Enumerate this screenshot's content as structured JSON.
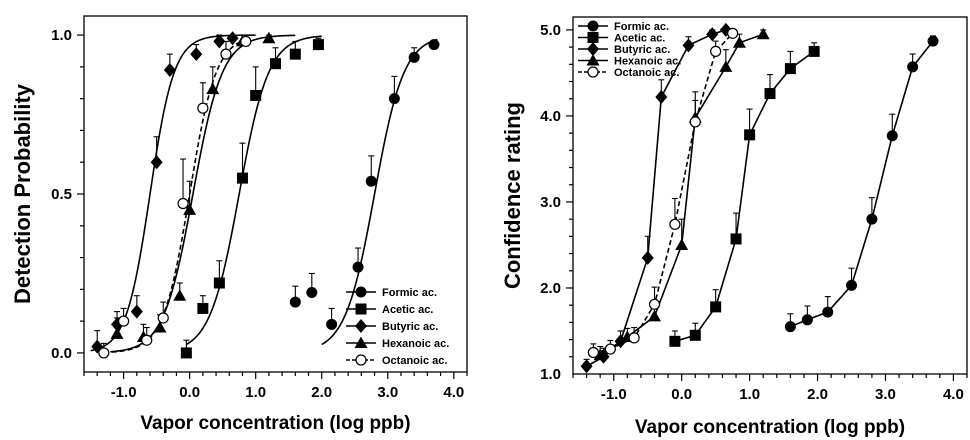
{
  "chart_data": [
    {
      "type": "scatter",
      "xlabel": "Vapor concentration (log ppb)",
      "ylabel": "Detection Probability",
      "xlim": [
        -1.6,
        4.2
      ],
      "ylim": [
        -0.06,
        1.06
      ],
      "xticks": [
        -1.0,
        0.0,
        1.0,
        2.0,
        3.0,
        4.0
      ],
      "xtick_labels": [
        "-1.0",
        "0.0",
        "1.0",
        "2.0",
        "3.0",
        "4.0"
      ],
      "yticks": [
        0.0,
        0.5,
        1.0
      ],
      "ytick_labels": [
        "0.0",
        "0.5",
        "1.0"
      ],
      "legend_position": "bottom-right",
      "series": [
        {
          "name": "Formic ac.",
          "marker": "circle-filled",
          "line": "solid",
          "x": [
            1.6,
            1.85,
            2.15,
            2.55,
            2.75,
            3.1,
            3.4,
            3.7
          ],
          "y": [
            0.16,
            0.19,
            0.09,
            0.27,
            0.54,
            0.8,
            0.93,
            0.97
          ],
          "err": [
            0.05,
            0.06,
            0.05,
            0.06,
            0.08,
            0.07,
            0.03,
            0.01
          ],
          "fit": {
            "x0": 2.8,
            "k": 4.5,
            "from": 2.0,
            "to": 3.75
          }
        },
        {
          "name": "Acetic ac.",
          "marker": "square-filled",
          "line": "solid",
          "x": [
            -0.05,
            0.2,
            0.45,
            0.8,
            1.0,
            1.3,
            1.6,
            1.95
          ],
          "y": [
            0.0,
            0.14,
            0.22,
            0.55,
            0.81,
            0.91,
            0.94,
            0.97
          ],
          "err": [
            0.04,
            0.04,
            0.07,
            0.11,
            0.09,
            0.05,
            0.04,
            0.02
          ],
          "fit": {
            "x0": 0.75,
            "k": 4.5,
            "from": -0.05,
            "to": 2.0
          }
        },
        {
          "name": "Butyric ac.",
          "marker": "diamond-filled",
          "line": "solid",
          "x": [
            -1.4,
            -1.1,
            -0.8,
            -0.5,
            -0.3,
            0.1,
            0.45,
            0.65
          ],
          "y": [
            0.02,
            0.09,
            0.13,
            0.6,
            0.89,
            0.94,
            0.98,
            0.99
          ],
          "err": [
            0.05,
            0.04,
            0.05,
            0.08,
            0.05,
            0.03,
            0.02,
            0.01
          ],
          "fit": {
            "x0": -0.6,
            "k": 5.5,
            "from": -1.5,
            "to": 1.0
          }
        },
        {
          "name": "Hexanoic ac.",
          "marker": "triangle-filled",
          "line": "solid",
          "x": [
            -1.1,
            -0.7,
            -0.45,
            -0.15,
            0.0,
            0.35,
            0.8,
            1.2
          ],
          "y": [
            0.06,
            0.05,
            0.08,
            0.18,
            0.45,
            0.83,
            0.98,
            0.99
          ],
          "err": [
            0.05,
            0.04,
            0.04,
            0.04,
            0.09,
            0.07,
            0.02,
            0.01
          ],
          "fit": {
            "x0": 0.05,
            "k": 4.5,
            "from": -1.2,
            "to": 1.6
          }
        },
        {
          "name": "Octanoic ac.",
          "marker": "circle-open",
          "line": "dashed",
          "x": [
            -1.3,
            -1.0,
            -0.65,
            -0.4,
            -0.1,
            0.2,
            0.55,
            0.85
          ],
          "y": [
            0.0,
            0.1,
            0.04,
            0.11,
            0.47,
            0.77,
            0.94,
            0.98
          ],
          "err": [
            0.03,
            0.04,
            0.04,
            0.05,
            0.14,
            0.08,
            0.04,
            0.02
          ],
          "fit": {
            "x0": 0.0,
            "k": 5.0,
            "from": -1.3,
            "to": 0.9
          }
        }
      ]
    },
    {
      "type": "line",
      "xlabel": "Vapor concentration (log ppb)",
      "ylabel": "Confidence rating",
      "xlim": [
        -1.6,
        4.2
      ],
      "ylim": [
        1.0,
        5.15
      ],
      "xticks": [
        -1.0,
        0.0,
        1.0,
        2.0,
        3.0,
        4.0
      ],
      "xtick_labels": [
        "-1.0",
        "0.0",
        "1.0",
        "2.0",
        "3.0",
        "4.0"
      ],
      "yticks": [
        1.0,
        2.0,
        3.0,
        4.0,
        5.0
      ],
      "ytick_labels": [
        "1.0",
        "2.0",
        "3.0",
        "4.0",
        "5.0"
      ],
      "legend_position": "top-left",
      "series": [
        {
          "name": "Formic ac.",
          "marker": "circle-filled",
          "line": "solid",
          "x": [
            1.6,
            1.85,
            2.15,
            2.5,
            2.8,
            3.1,
            3.4,
            3.7
          ],
          "y": [
            1.55,
            1.63,
            1.72,
            2.03,
            2.8,
            3.77,
            4.57,
            4.87
          ],
          "err": [
            0.15,
            0.16,
            0.18,
            0.2,
            0.25,
            0.25,
            0.15,
            0.06
          ]
        },
        {
          "name": "Acetic ac.",
          "marker": "square-filled",
          "line": "solid",
          "x": [
            -0.1,
            0.2,
            0.5,
            0.8,
            1.0,
            1.3,
            1.6,
            1.95
          ],
          "y": [
            1.38,
            1.45,
            1.78,
            2.57,
            3.78,
            4.26,
            4.55,
            4.75
          ],
          "err": [
            0.12,
            0.14,
            0.2,
            0.3,
            0.3,
            0.22,
            0.2,
            0.1
          ]
        },
        {
          "name": "Butyric ac.",
          "marker": "diamond-filled",
          "line": "solid",
          "x": [
            -1.4,
            -1.15,
            -0.9,
            -0.5,
            -0.3,
            0.1,
            0.45,
            0.65
          ],
          "y": [
            1.09,
            1.2,
            1.38,
            2.35,
            4.22,
            4.82,
            4.95,
            5.0
          ],
          "err": [
            0.08,
            0.1,
            0.12,
            0.25,
            0.2,
            0.1,
            0.05,
            0.03
          ]
        },
        {
          "name": "Hexanoic ac.",
          "marker": "triangle-filled",
          "line": "solid",
          "x": [
            -1.2,
            -0.8,
            -0.4,
            0.0,
            0.2,
            0.65,
            0.85,
            1.2
          ],
          "y": [
            1.22,
            1.43,
            1.67,
            2.5,
            3.98,
            4.57,
            4.85,
            4.95
          ],
          "err": [
            0.1,
            0.1,
            0.12,
            0.3,
            0.3,
            0.2,
            0.1,
            0.05
          ]
        },
        {
          "name": "Octanoic ac.",
          "marker": "circle-open",
          "line": "dashed",
          "x": [
            -1.3,
            -1.05,
            -0.7,
            -0.4,
            -0.1,
            0.2,
            0.5,
            0.75
          ],
          "y": [
            1.25,
            1.29,
            1.42,
            1.81,
            2.74,
            3.93,
            4.75,
            4.96
          ],
          "err": [
            0.1,
            0.1,
            0.12,
            0.2,
            0.3,
            0.25,
            0.12,
            0.05
          ]
        }
      ]
    }
  ]
}
